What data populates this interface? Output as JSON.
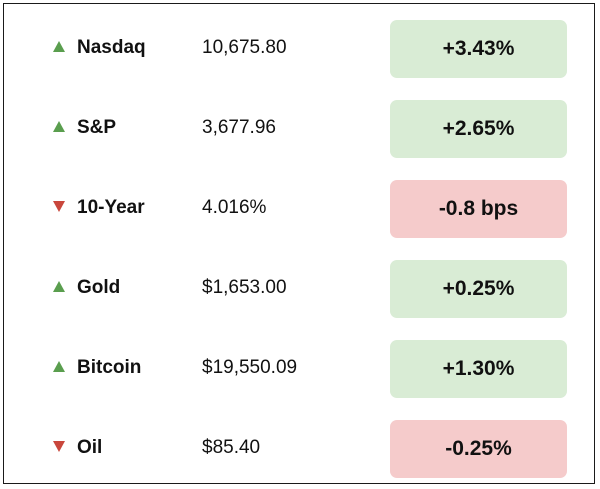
{
  "rows": [
    {
      "name": "Nasdaq",
      "value": "10,675.80",
      "change": "+3.43%",
      "direction": "up",
      "arrow_icon": "triangle-up-icon"
    },
    {
      "name": "S&P",
      "value": "3,677.96",
      "change": "+2.65%",
      "direction": "up",
      "arrow_icon": "triangle-up-icon"
    },
    {
      "name": "10-Year",
      "value": "4.016%",
      "change": "-0.8 bps",
      "direction": "down",
      "arrow_icon": "triangle-down-icon"
    },
    {
      "name": "Gold",
      "value": "$1,653.00",
      "change": "+0.25%",
      "direction": "up",
      "arrow_icon": "triangle-up-icon"
    },
    {
      "name": "Bitcoin",
      "value": "$19,550.09",
      "change": "+1.30%",
      "direction": "up",
      "arrow_icon": "triangle-up-icon"
    },
    {
      "name": "Oil",
      "value": "$85.40",
      "change": "-0.25%",
      "direction": "down",
      "arrow_icon": "triangle-down-icon"
    }
  ],
  "colors": {
    "up_arrow": "#5a9e4e",
    "down_arrow": "#c9473c",
    "positive_bg": "#d9ecd5",
    "negative_bg": "#f5cbcb"
  }
}
